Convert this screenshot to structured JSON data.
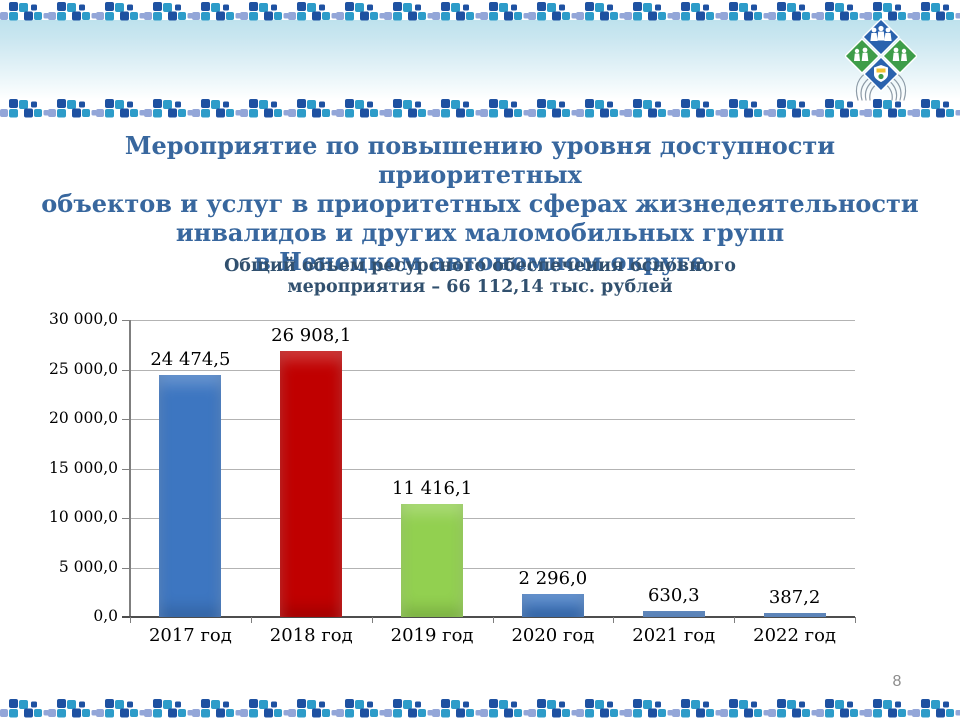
{
  "slide": {
    "title_lines": [
      "Мероприятие по повышению уровня доступности приоритетных",
      "объектов и услуг в приоритетных сферах жизнедеятельности",
      "инвалидов и других маломобильных групп",
      "в Ненецком автономном округе"
    ],
    "subtitle_lines": [
      "Общий объем ресурсного обеспечения основного",
      "мероприятия – 66 112,14 тыс. рублей"
    ],
    "page_number": "8",
    "colors": {
      "title_text": "#38679E",
      "subtitle_text": "#31506E",
      "banner_top": "#BEE2ED",
      "mosaic_navy": "#1E51A1",
      "mosaic_cyan": "#2D9CC9",
      "mosaic_periwinkle": "#93A6D8"
    }
  },
  "chart_data": {
    "type": "bar",
    "title": "Общий объем ресурсного обеспечения основного мероприятия – 66 112,14 тыс. рублей",
    "categories": [
      "2017 год",
      "2018 год",
      "2019 год",
      "2020 год",
      "2021 год",
      "2022 год"
    ],
    "values": [
      24474.5,
      26908.1,
      11416.1,
      2296.0,
      630.3,
      387.2
    ],
    "value_labels": [
      "24 474,5",
      "26 908,1",
      "11 416,1",
      "2 296,0",
      "630,3",
      "387,2"
    ],
    "bar_colors": [
      "#3D76C1",
      "#C00000",
      "#92D050",
      "#3D76C1",
      "#3D76C1",
      "#3D76C1"
    ],
    "xlabel": "",
    "ylabel": "",
    "ylim": [
      0,
      30000
    ],
    "ytick_values": [
      0,
      5000,
      10000,
      15000,
      20000,
      25000,
      30000
    ],
    "ytick_labels": [
      "0,0",
      "5 000,0",
      "10 000,0",
      "15 000,0",
      "20 000,0",
      "25 000,0",
      "30 000,0"
    ],
    "grid": true,
    "legend": false
  }
}
